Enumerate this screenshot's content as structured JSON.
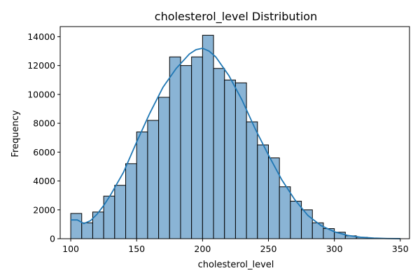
{
  "chart_data": {
    "type": "bar",
    "title": "cholesterol_level Distribution",
    "xlabel": "cholesterol_level",
    "ylabel": "Frequency",
    "xlim": [
      92,
      357
    ],
    "ylim": [
      0,
      14700
    ],
    "x_ticks": [
      100,
      150,
      200,
      250,
      300,
      350
    ],
    "y_ticks": [
      0,
      2000,
      4000,
      6000,
      8000,
      10000,
      12000,
      14000
    ],
    "bin_start": 100,
    "bin_width": 8.333,
    "bin_counts": [
      1750,
      1100,
      1850,
      2950,
      3700,
      5200,
      7400,
      8200,
      9800,
      12600,
      12000,
      12600,
      14100,
      11800,
      11000,
      10800,
      8100,
      6500,
      5600,
      3600,
      2600,
      2000,
      1100,
      700,
      450,
      200,
      100,
      40,
      15,
      5
    ],
    "kde": {
      "x": [
        100,
        105,
        110,
        115,
        120,
        125,
        130,
        140,
        150,
        160,
        170,
        180,
        190,
        195,
        200,
        205,
        210,
        220,
        230,
        240,
        250,
        260,
        270,
        280,
        290,
        300,
        310,
        320,
        330,
        340,
        350
      ],
      "y": [
        1300,
        1300,
        1050,
        1250,
        1700,
        2300,
        3000,
        4600,
        6700,
        8700,
        10500,
        11800,
        12800,
        13100,
        13200,
        13000,
        12600,
        11300,
        9600,
        7600,
        5800,
        4100,
        2700,
        1600,
        900,
        480,
        230,
        100,
        40,
        12,
        4
      ]
    },
    "grid": false,
    "colors": {
      "bar_fill": "#8ab4d5",
      "bar_edge": "#000000",
      "kde_line": "#1f77b4"
    }
  }
}
